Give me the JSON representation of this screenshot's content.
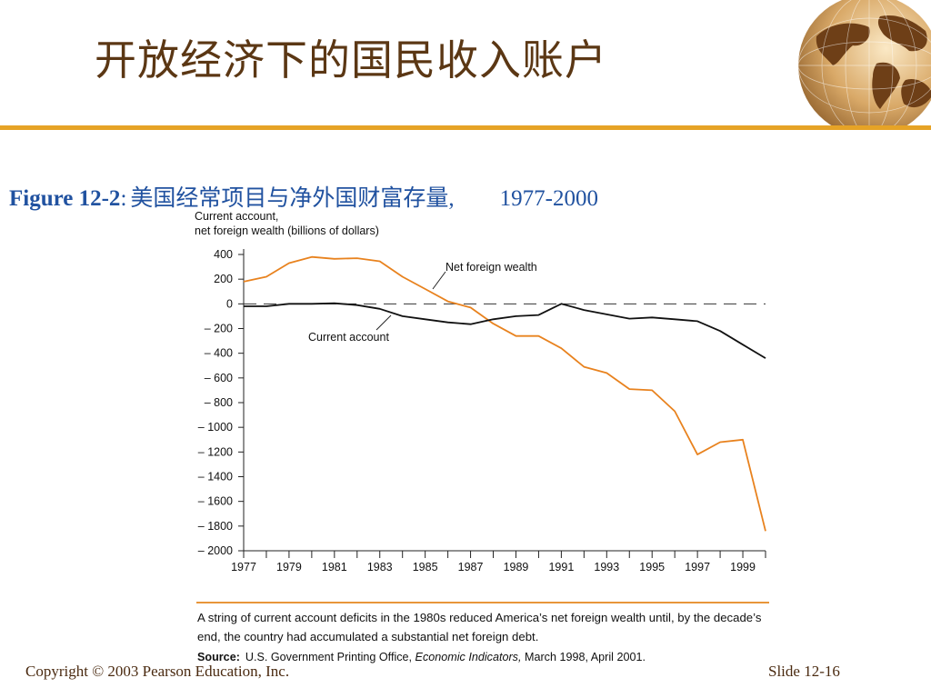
{
  "slide": {
    "title": "开放经济下的国民收入账户",
    "figure_number": "Figure 12-2",
    "figure_colon": ":",
    "figure_title": "美国经常项目与净外国财富存量,",
    "figure_years": "1977-2000"
  },
  "note": {
    "text": "A string of current account deficits in the 1980s reduced America’s net foreign wealth until, by the decade’s end, the country had accumulated a substantial net foreign debt.",
    "source_label": "Source:",
    "source_pre": "U.S. Government Printing Office, ",
    "source_italic": "Economic Indicators,",
    "source_post": " March 1998, April 2001."
  },
  "footer": {
    "copyright": "Copyright © 2003 Pearson Education, Inc.",
    "slide_number": "Slide 12-16"
  },
  "chart_data": {
    "type": "line",
    "ylabel_line1": "Current account,",
    "ylabel_line2": "net foreign wealth (billions of dollars)",
    "xlim": [
      1977,
      2000
    ],
    "ylim": [
      -2000,
      400
    ],
    "yticks": [
      400,
      200,
      0,
      -200,
      -400,
      -600,
      -800,
      -1000,
      -1200,
      -1400,
      -1600,
      -1800,
      -2000
    ],
    "ytick_labels": [
      "400",
      "200",
      "0",
      "– 200",
      "– 400",
      "– 600",
      "– 800",
      "– 1000",
      "– 1200",
      "– 1400",
      "– 1600",
      "– 1800",
      "– 2000"
    ],
    "xtick_labels": [
      "1977",
      "1979",
      "1981",
      "1983",
      "1985",
      "1987",
      "1989",
      "1991",
      "1993",
      "1995",
      "1997",
      "1999"
    ],
    "zero_line": "dashed",
    "series": [
      {
        "name": "Net foreign wealth",
        "color": "#e8821e",
        "x": [
          1977,
          1978,
          1979,
          1980,
          1981,
          1982,
          1983,
          1984,
          1985,
          1986,
          1987,
          1988,
          1989,
          1990,
          1991,
          1992,
          1993,
          1994,
          1995,
          1996,
          1997,
          1998,
          1999,
          2000
        ],
        "values": [
          180,
          220,
          330,
          380,
          365,
          370,
          345,
          220,
          120,
          20,
          -30,
          -160,
          -260,
          -260,
          -360,
          -510,
          -560,
          -690,
          -700,
          -870,
          -1220,
          -1120,
          -1100,
          -1840
        ]
      },
      {
        "name": "Current account",
        "color": "#111111",
        "x": [
          1977,
          1978,
          1979,
          1980,
          1981,
          1982,
          1983,
          1984,
          1985,
          1986,
          1987,
          1988,
          1989,
          1990,
          1991,
          1992,
          1993,
          1994,
          1995,
          1996,
          1997,
          1998,
          1999,
          2000
        ],
        "values": [
          -20,
          -20,
          0,
          0,
          5,
          -10,
          -40,
          -100,
          -125,
          -150,
          -165,
          -125,
          -100,
          -90,
          0,
          -50,
          -85,
          -120,
          -110,
          -125,
          -140,
          -220,
          -330,
          -440
        ]
      }
    ],
    "annotations": [
      "Net foreign wealth",
      "Current account"
    ]
  }
}
